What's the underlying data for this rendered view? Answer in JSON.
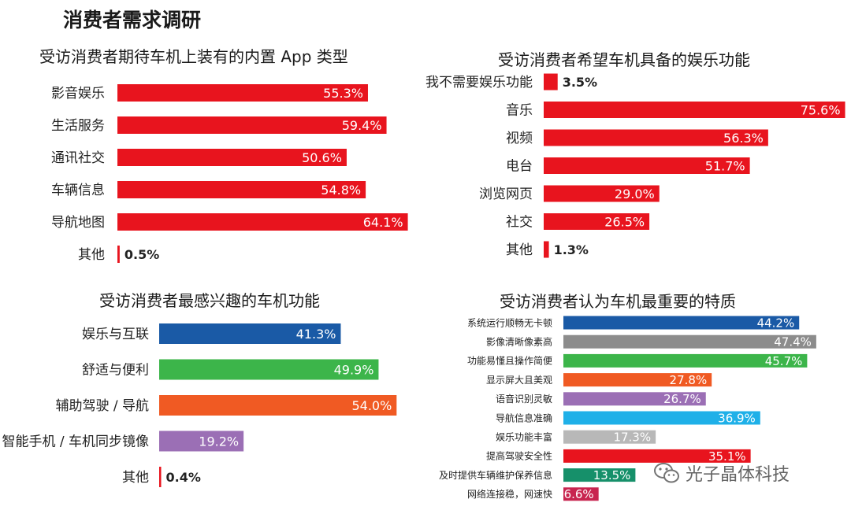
{
  "page": {
    "title": "消费者需求调研",
    "watermark": "光子晶体科技",
    "watermark_icon": "wechat-icon"
  },
  "colors": {
    "red": "#e8141e",
    "blue": "#1a5aa6",
    "green": "#3cb54a",
    "orange": "#f05a23",
    "purple": "#9b6fb5",
    "gray": "#8c8c8c",
    "cyan": "#1fb0e8",
    "lightgray": "#b8b8b8",
    "teal": "#16906a",
    "crimson": "#c8254f"
  },
  "chart_data": [
    {
      "id": "app_types",
      "type": "bar",
      "orientation": "horizontal",
      "title": "受访消费者期待车机上装有的内置 App 类型",
      "categories": [
        "影音娱乐",
        "生活服务",
        "通讯社交",
        "车辆信息",
        "导航地图",
        "其他"
      ],
      "values": [
        55.3,
        59.4,
        50.6,
        54.8,
        64.1,
        0.5
      ],
      "labels": [
        "55.3%",
        "59.4%",
        "50.6%",
        "54.8%",
        "64.1%",
        "0.5%"
      ],
      "colors": [
        "red",
        "red",
        "red",
        "red",
        "red",
        "red"
      ],
      "unit": "%",
      "xlim": [
        0,
        100
      ]
    },
    {
      "id": "entertainment",
      "type": "bar",
      "orientation": "horizontal",
      "title": "受访消费者希望车机具备的娱乐功能",
      "categories": [
        "我不需要娱乐功能",
        "音乐",
        "视频",
        "电台",
        "浏览网页",
        "社交",
        "其他"
      ],
      "values": [
        3.5,
        75.6,
        56.3,
        51.7,
        29.0,
        26.5,
        1.3
      ],
      "labels": [
        "3.5%",
        "75.6%",
        "56.3%",
        "51.7%",
        "29.0%",
        "26.5%",
        "1.3%"
      ],
      "colors": [
        "red",
        "red",
        "red",
        "red",
        "red",
        "red",
        "red"
      ],
      "unit": "%",
      "xlim": [
        0,
        100
      ]
    },
    {
      "id": "interest",
      "type": "bar",
      "orientation": "horizontal",
      "title": "受访消费者最感兴趣的车机功能",
      "categories": [
        "娱乐与互联",
        "舒适与便利",
        "辅助驾驶 / 导航",
        "智能手机 / 车机同步镜像",
        "其他"
      ],
      "values": [
        41.3,
        49.9,
        54.0,
        19.2,
        0.4
      ],
      "labels": [
        "41.3%",
        "49.9%",
        "54.0%",
        "19.2%",
        "0.4%"
      ],
      "colors": [
        "blue",
        "green",
        "orange",
        "purple",
        "red"
      ],
      "unit": "%",
      "xlim": [
        0,
        100
      ]
    },
    {
      "id": "qualities",
      "type": "bar",
      "orientation": "horizontal",
      "title": "受访消费者认为车机最重要的特质",
      "categories": [
        "系统运行顺畅无卡顿",
        "影像清晰像素高",
        "功能易懂且操作简便",
        "显示屏大且美观",
        "语音识别灵敏",
        "导航信息准确",
        "娱乐功能丰富",
        "提高驾驶安全性",
        "及时提供车辆维护保养信息",
        "网络连接稳，网速快"
      ],
      "values": [
        44.2,
        47.4,
        45.7,
        27.8,
        26.7,
        36.9,
        17.3,
        35.1,
        13.5,
        6.6
      ],
      "labels": [
        "44.2%",
        "47.4%",
        "45.7%",
        "27.8%",
        "26.7%",
        "36.9%",
        "17.3%",
        "35.1%",
        "13.5%",
        "6.6%"
      ],
      "colors": [
        "blue",
        "gray",
        "green",
        "orange",
        "purple",
        "cyan",
        "lightgray",
        "red",
        "teal",
        "crimson"
      ],
      "unit": "%",
      "xlim": [
        0,
        100
      ]
    }
  ]
}
